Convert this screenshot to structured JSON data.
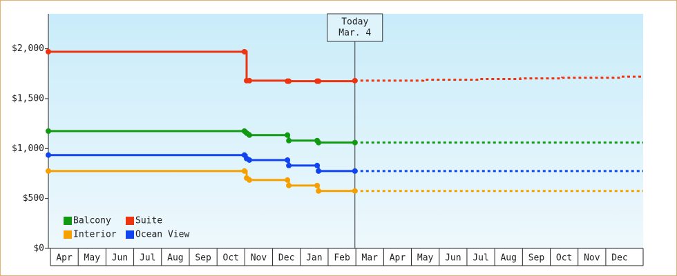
{
  "chart_data": {
    "type": "step-line",
    "categories": [
      "Apr",
      "May",
      "Jun",
      "Jul",
      "Aug",
      "Sep",
      "Oct",
      "Nov",
      "Dec",
      "Jan",
      "Feb",
      "Mar",
      "Apr",
      "May",
      "Jun",
      "Jul",
      "Aug",
      "Sep",
      "Oct",
      "Nov",
      "Dec"
    ],
    "xlim": [
      0,
      21.42
    ],
    "x": [
      0,
      7.06,
      7.14,
      7.24,
      8.61,
      8.66,
      9.68,
      9.73,
      11.04
    ],
    "forecast_x": [
      11.04,
      13.5,
      15.5,
      17,
      18.5,
      20.6,
      21.42
    ],
    "series": [
      {
        "name": "Balcony",
        "color": "#119911",
        "values": [
          1175,
          1175,
          1155,
          1135,
          1135,
          1080,
          1080,
          1060,
          1060
        ],
        "forecast_values": [
          1060,
          1060,
          1060,
          1060,
          1060,
          1060,
          1060
        ]
      },
      {
        "name": "Suite",
        "color": "#ee3311",
        "values": [
          1970,
          1970,
          1680,
          1680,
          1675,
          1675,
          1675,
          1675,
          1680
        ],
        "forecast_values": [
          1680,
          1690,
          1697,
          1703,
          1710,
          1720,
          1720
        ]
      },
      {
        "name": "Interior",
        "color": "#f5a000",
        "values": [
          775,
          775,
          705,
          685,
          685,
          630,
          630,
          575,
          575
        ],
        "forecast_values": [
          575,
          575,
          575,
          575,
          575,
          575,
          575
        ]
      },
      {
        "name": "Ocean View",
        "color": "#1144ee",
        "values": [
          935,
          935,
          900,
          885,
          885,
          830,
          830,
          775,
          775
        ],
        "forecast_values": [
          775,
          775,
          775,
          775,
          775,
          775,
          775
        ]
      }
    ],
    "ylim": [
      0,
      2350
    ],
    "yticks": [
      {
        "value": 0,
        "label": "$0"
      },
      {
        "value": 500,
        "label": "$500"
      },
      {
        "value": 1000,
        "label": "$1,000"
      },
      {
        "value": 1500,
        "label": "$1,500"
      },
      {
        "value": 2000,
        "label": "$2,000"
      }
    ],
    "annotation": {
      "x": 11.04,
      "lines": [
        "Today",
        "Mar. 4"
      ]
    },
    "legend": "lower-left"
  }
}
